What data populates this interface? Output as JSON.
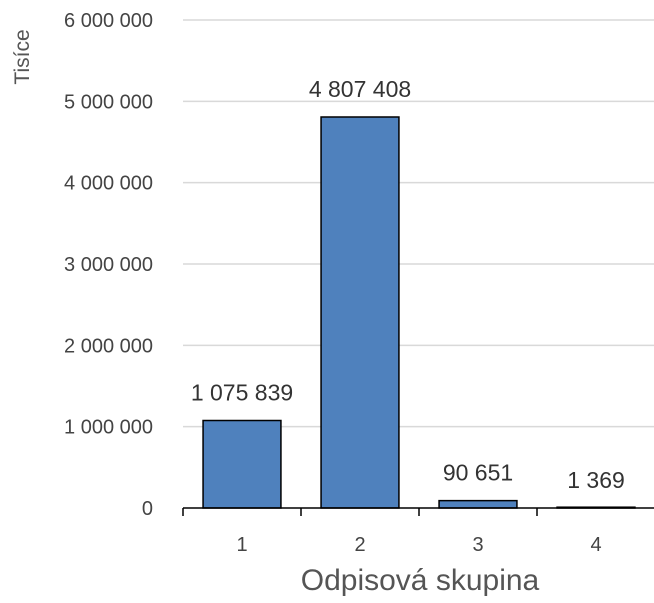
{
  "chart_data": {
    "type": "bar",
    "categories": [
      "1",
      "2",
      "3",
      "4"
    ],
    "values": [
      1075839,
      4807408,
      90651,
      1369
    ],
    "data_labels": [
      "1 075 839",
      "4 807 408",
      "90 651",
      "1 369"
    ],
    "title": "",
    "xlabel": "Odpisová skupina",
    "ylabel": "Tisíce",
    "ylim": [
      0,
      6000000
    ],
    "yticks": [
      0,
      1000000,
      2000000,
      3000000,
      4000000,
      5000000,
      6000000
    ],
    "ytick_labels": [
      "0",
      "1 000 000",
      "2 000 000",
      "3 000 000",
      "4 000 000",
      "5 000 000",
      "6 000 000"
    ],
    "grid": true,
    "legend": "none",
    "colors": {
      "bar_fill": "#4f81bd",
      "bar_stroke": "#000000",
      "grid": "#d9d9d9",
      "axis": "#000000"
    }
  }
}
